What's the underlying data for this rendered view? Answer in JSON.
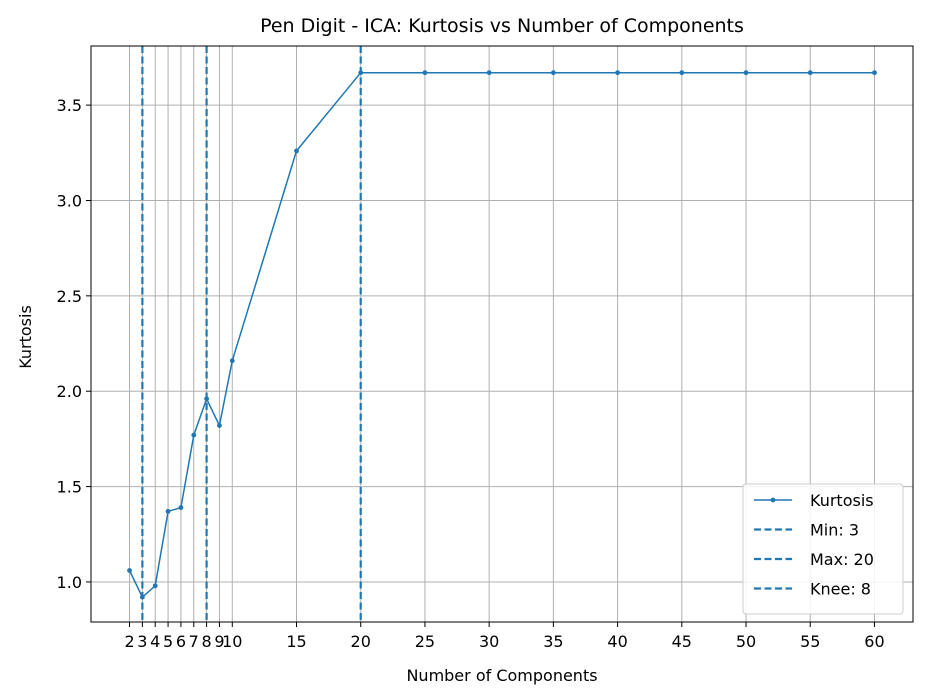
{
  "chart_data": {
    "type": "line",
    "title": "Pen Digit - ICA: Kurtosis vs Number of Components",
    "xlabel": "Number of Components",
    "ylabel": "Kurtosis",
    "x_ticks": [
      2,
      3,
      4,
      5,
      6,
      7,
      8,
      9,
      10,
      15,
      20,
      25,
      30,
      35,
      40,
      45,
      50,
      55,
      60
    ],
    "y_ticks": [
      1.0,
      1.5,
      2.0,
      2.5,
      3.0,
      3.5
    ],
    "y_tick_labels": [
      "1.0",
      "1.5",
      "2.0",
      "2.5",
      "3.0",
      "3.5"
    ],
    "xlim": [
      -1,
      63
    ],
    "ylim": [
      0.79,
      3.81
    ],
    "grid": true,
    "legend_position": "lower-right",
    "series": [
      {
        "name": "Kurtosis",
        "color": "#1f77b4",
        "x": [
          2,
          3,
          4,
          5,
          6,
          7,
          8,
          9,
          10,
          15,
          20,
          25,
          30,
          35,
          40,
          45,
          50,
          55,
          60
        ],
        "y": [
          1.06,
          0.92,
          0.98,
          1.37,
          1.39,
          1.77,
          1.96,
          1.82,
          2.16,
          3.26,
          3.67,
          3.67,
          3.67,
          3.67,
          3.67,
          3.67,
          3.67,
          3.67,
          3.67
        ]
      }
    ],
    "reference_lines": [
      {
        "name": "Min: 3",
        "x": 3,
        "color": "#1f77b4",
        "style": "dashed"
      },
      {
        "name": "Max: 20",
        "x": 20,
        "color": "#1f77b4",
        "style": "dashed"
      },
      {
        "name": "Knee: 8",
        "x": 8,
        "color": "#1f77b4",
        "style": "dashed"
      }
    ]
  }
}
